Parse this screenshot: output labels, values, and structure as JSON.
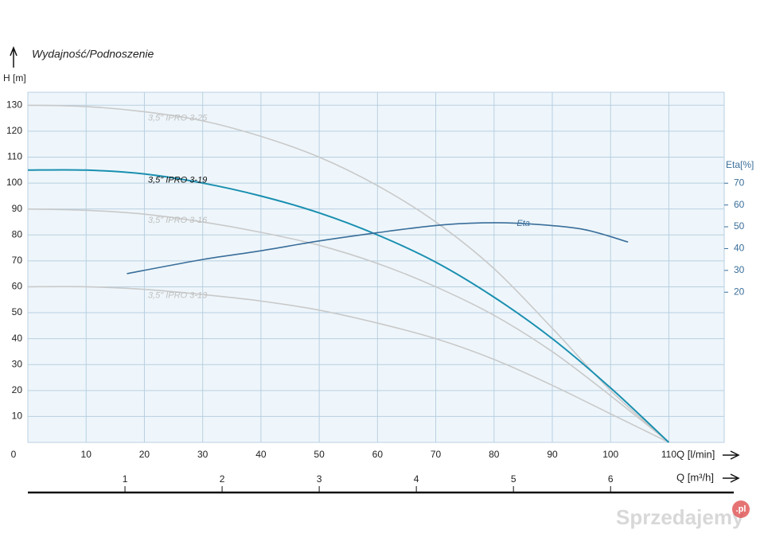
{
  "chart_data": {
    "type": "line",
    "title": "Wydajność/Podnoszenie",
    "y_label": "H [m]",
    "y2_label": "Eta[%]",
    "x_label": "Q  [l/min]",
    "x2_label": "Q  [m³/h]",
    "xlim": [
      0,
      119.5
    ],
    "xticks": [
      0,
      10,
      20,
      30,
      40,
      50,
      60,
      70,
      80,
      90,
      100,
      110
    ],
    "x2lim": [
      0,
      7.17
    ],
    "x2ticks": [
      1,
      2,
      3,
      4,
      5,
      6
    ],
    "ylim": [
      0,
      135
    ],
    "yticks": [
      10,
      20,
      30,
      40,
      50,
      60,
      70,
      80,
      90,
      100,
      110,
      120,
      130
    ],
    "y2lim": [
      -48.9,
      111.7
    ],
    "y2ticks": [
      20,
      30,
      40,
      50,
      60,
      70
    ],
    "grid": true,
    "series": [
      {
        "name": "3,5\" IPRO 3-25",
        "color": "#c9c9c9",
        "x": [
          0,
          10,
          20,
          30,
          40,
          50,
          60,
          70,
          80,
          90,
          100,
          110
        ],
        "values": [
          130,
          129.5,
          127.5,
          124,
          118,
          110,
          99,
          85,
          67,
          44,
          20,
          0
        ]
      },
      {
        "name": "3,5\" IPRO 3-16",
        "color": "#c9c9c9",
        "x": [
          0,
          10,
          20,
          30,
          40,
          50,
          60,
          70,
          80,
          90,
          100,
          110
        ],
        "values": [
          90,
          89.5,
          88,
          85,
          81,
          76,
          69,
          60,
          49,
          35,
          18,
          0
        ]
      },
      {
        "name": "3,5\" IPRO 3-13",
        "color": "#c9c9c9",
        "x": [
          0,
          10,
          20,
          30,
          40,
          50,
          60,
          70,
          80,
          90,
          100,
          110
        ],
        "values": [
          60,
          60,
          59,
          57,
          54.5,
          51,
          46,
          40,
          32,
          22,
          11,
          0
        ]
      },
      {
        "name": "3,5\" IPRO 3-19",
        "color": "#1a8fb0",
        "x": [
          0,
          10,
          20,
          30,
          40,
          50,
          60,
          70,
          80,
          90,
          100,
          110
        ],
        "values": [
          105,
          105,
          103.5,
          100,
          95,
          88.5,
          80,
          69.5,
          56,
          40,
          21,
          0
        ]
      },
      {
        "name": "Eta",
        "color": "#3a6e9a",
        "axis": "y2",
        "x": [
          17,
          30,
          40,
          50,
          60,
          70,
          78,
          85,
          95,
          103
        ],
        "values": [
          28.5,
          35,
          39,
          43.5,
          47.3,
          50.6,
          51.8,
          51.5,
          49,
          43
        ]
      }
    ]
  },
  "watermark": "Sprzedajemy",
  "watermark_badge": ".pl"
}
